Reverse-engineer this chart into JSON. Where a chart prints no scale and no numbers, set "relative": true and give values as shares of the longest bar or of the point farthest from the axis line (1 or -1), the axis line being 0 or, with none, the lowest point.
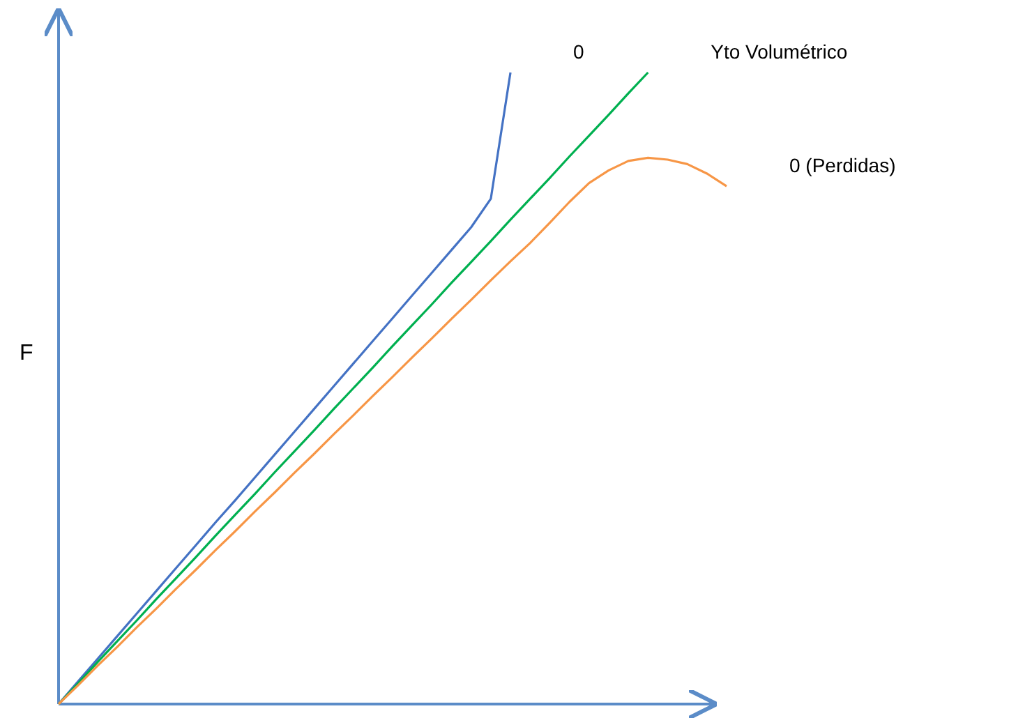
{
  "chart_data": {
    "type": "line",
    "relative": true,
    "ylabel": "F",
    "line_style": "solid",
    "categories": [
      null,
      null,
      null,
      null,
      null,
      null,
      null,
      null,
      null,
      null,
      null,
      null,
      null,
      null,
      null,
      null,
      null,
      null,
      null,
      null,
      null,
      null,
      null,
      null,
      null,
      null,
      null,
      null,
      null,
      null,
      null,
      null,
      null,
      null,
      null
    ],
    "series": [
      {
        "name": "0",
        "color": "#4472c4",
        "values": [
          0,
          0.036,
          0.072,
          0.108,
          0.144,
          0.18,
          0.216,
          0.252,
          0.288,
          0.323,
          0.359,
          0.395,
          0.431,
          0.467,
          0.503,
          0.539,
          0.575,
          0.611,
          0.647,
          0.683,
          0.719,
          0.755,
          0.8,
          1.0,
          null,
          null,
          null,
          null,
          null,
          null,
          null,
          null,
          null,
          null,
          null
        ]
      },
      {
        "name": "Yto Volumétrico",
        "color": "#00b050",
        "values": [
          0,
          0.033,
          0.067,
          0.1,
          0.133,
          0.167,
          0.2,
          0.233,
          0.267,
          0.3,
          0.333,
          0.367,
          0.4,
          0.433,
          0.467,
          0.5,
          0.533,
          0.567,
          0.6,
          0.633,
          0.667,
          0.7,
          0.733,
          0.767,
          0.8,
          0.833,
          0.867,
          0.9,
          0.933,
          0.967,
          1.0,
          null,
          null,
          null,
          null
        ]
      },
      {
        "name": "0 (Perdidas)",
        "color": "#f79646",
        "values": [
          0,
          0.03,
          0.061,
          0.091,
          0.122,
          0.152,
          0.183,
          0.213,
          0.244,
          0.274,
          0.305,
          0.335,
          0.366,
          0.396,
          0.427,
          0.457,
          0.488,
          0.518,
          0.549,
          0.579,
          0.61,
          0.64,
          0.671,
          0.701,
          0.73,
          0.762,
          0.795,
          0.825,
          0.845,
          0.86,
          0.865,
          0.862,
          0.855,
          0.84,
          0.82
        ]
      }
    ]
  }
}
